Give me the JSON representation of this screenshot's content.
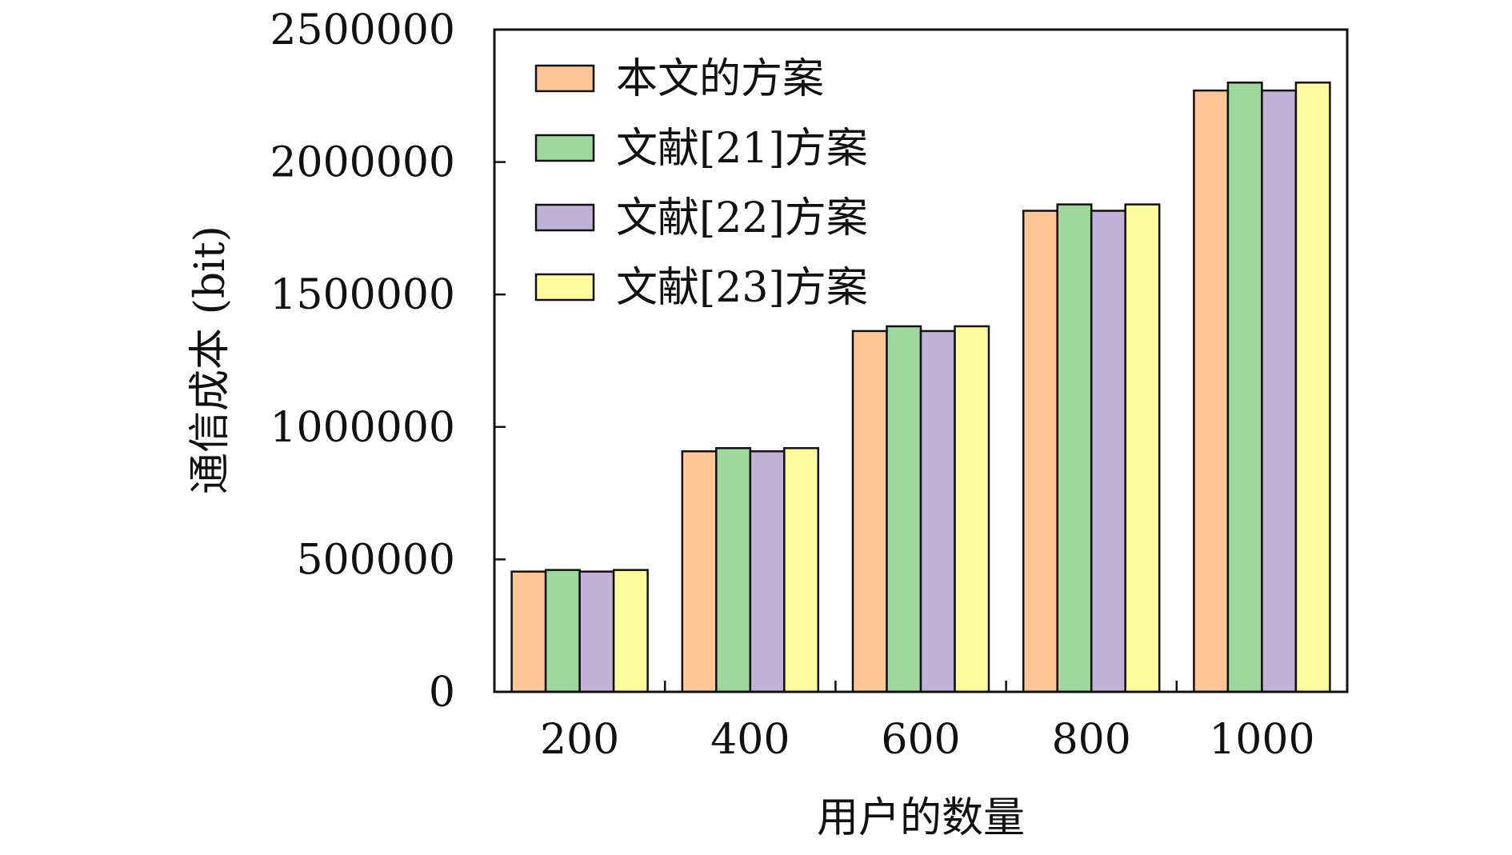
{
  "chart_data": {
    "type": "bar",
    "categories": [
      "200",
      "400",
      "600",
      "800",
      "1000"
    ],
    "series": [
      {
        "name": "本文的方案",
        "values": [
          454000,
          908000,
          1362000,
          1816000,
          2270000
        ],
        "color": "#fcc697"
      },
      {
        "name": "文献[21]方案",
        "values": [
          460000,
          920000,
          1380000,
          1840000,
          2300000
        ],
        "color": "#9fd89d"
      },
      {
        "name": "文献[22]方案",
        "values": [
          454000,
          908000,
          1362000,
          1816000,
          2270000
        ],
        "color": "#c3b2d8"
      },
      {
        "name": "文献[23]方案",
        "values": [
          460000,
          920000,
          1380000,
          1840000,
          2300000
        ],
        "color": "#fdfd9f"
      }
    ],
    "xlabel": "用户的数量",
    "ylabel": "通信成本 (bit)",
    "ylim": [
      0,
      2500000
    ],
    "yticks": [
      "0",
      "500000",
      "1000000",
      "1500000",
      "2000000",
      "2500000"
    ],
    "legend_position": "top-left",
    "grid": false
  }
}
